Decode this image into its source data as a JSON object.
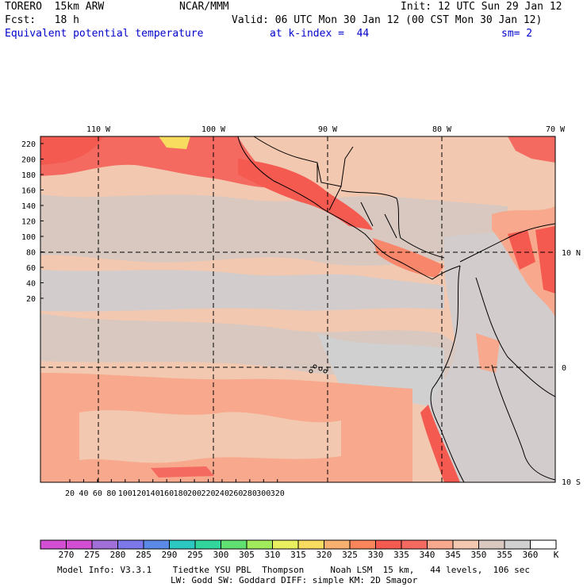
{
  "header": {
    "model": "TORERO  15km ARW",
    "org": "NCAR/MMM",
    "init": "Init: 12 UTC Sun 29 Jan 12",
    "fcst": "Fcst:   18 h",
    "valid": "Valid: 06 UTC Mon 30 Jan 12 (00 CST Mon 30 Jan 12)",
    "field": "Equivalent potential temperature",
    "level": "at k-index =  44",
    "smooth": "sm= 2"
  },
  "map": {
    "lon_labels": [
      "110 W",
      "100 W",
      "90 W",
      "80 W",
      "70 W"
    ],
    "lat_labels": [
      "10 N",
      "0",
      "10 S"
    ],
    "y_ticks": [
      "220",
      "200",
      "180",
      "160",
      "140",
      "120",
      "100",
      "80",
      "60",
      "40",
      "20"
    ],
    "x_ticks": [
      "20",
      "40",
      "60",
      "80",
      "100",
      "120",
      "140",
      "160",
      "180",
      "200",
      "220",
      "240",
      "260",
      "280",
      "300",
      "320"
    ]
  },
  "legend": {
    "unit": "K",
    "values": [
      "270",
      "275",
      "280",
      "285",
      "290",
      "295",
      "300",
      "305",
      "310",
      "315",
      "320",
      "325",
      "330",
      "335",
      "340",
      "345",
      "350",
      "355",
      "360"
    ],
    "colors": [
      "#d24ed2",
      "#a070d8",
      "#7c78ec",
      "#5a8ae6",
      "#2ac8c0",
      "#30d69c",
      "#60e070",
      "#a0ec5c",
      "#e8f060",
      "#f8dc60",
      "#f8b070",
      "#f8865a",
      "#f45a50",
      "#f46a60",
      "#f8a88c",
      "#f2c8b0",
      "#d8c8c0",
      "#d0d0d0",
      "#ffffff"
    ]
  },
  "footer": {
    "line1": "Model Info: V3.3.1    Tiedtke YSU PBL  Thompson     Noah LSM  15 km,   44 levels,  106 sec",
    "line2": "LW: Godd SW: Goddard DIFF: simple KM: 2D Smagor"
  }
}
